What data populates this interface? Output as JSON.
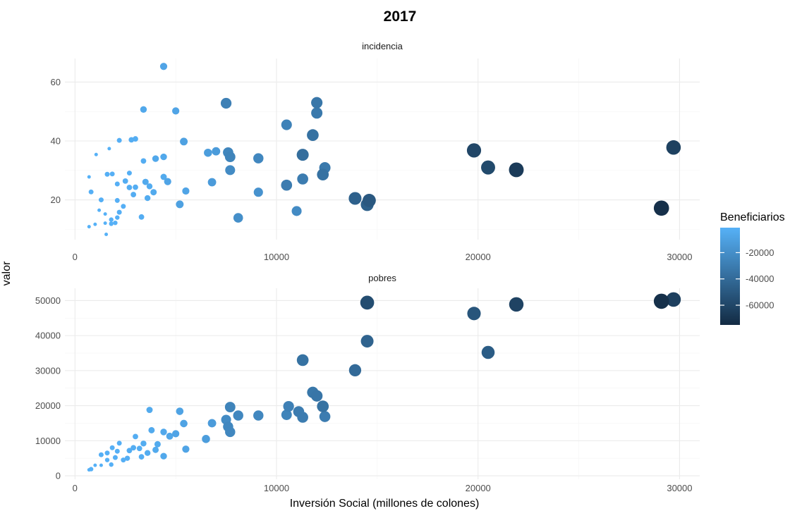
{
  "chart_data": {
    "type": "scatter",
    "title": "2017",
    "xlabel": "Inversión Social (millones de colones)",
    "ylabel": "valor",
    "xlim": [
      -500,
      31000
    ],
    "x_ticks": [
      0,
      10000,
      20000,
      30000
    ],
    "x_tick_labels": [
      "0",
      "10000",
      "20000",
      "30000"
    ],
    "grid": true,
    "color_scale": {
      "title": "Beneficiarios",
      "low_value": -75000,
      "high_value": -1000,
      "low_color": "#132B43",
      "high_color": "#56B1F7",
      "breaks": [
        -20000,
        -40000,
        -60000
      ],
      "break_labels": [
        "-20000",
        "-40000",
        "-60000"
      ]
    },
    "legend_position": "right",
    "panels": [
      {
        "strip": "incidencia",
        "ylim": [
          6.5,
          68
        ],
        "y_ticks": [
          20,
          40,
          60
        ],
        "y_tick_labels": [
          "20",
          "40",
          "60"
        ],
        "points": [
          {
            "x": 4400,
            "y": 65.3,
            "c": -8000
          },
          {
            "x": 3400,
            "y": 50.7,
            "c": -6000
          },
          {
            "x": 5000,
            "y": 50.2,
            "c": -8000
          },
          {
            "x": 7500,
            "y": 52.8,
            "c": -28000
          },
          {
            "x": 12000,
            "y": 53.0,
            "c": -33000
          },
          {
            "x": 12000,
            "y": 49.5,
            "c": -32000
          },
          {
            "x": 10500,
            "y": 45.5,
            "c": -27000
          },
          {
            "x": 11800,
            "y": 42.0,
            "c": -36000
          },
          {
            "x": 3000,
            "y": 40.7,
            "c": -3000
          },
          {
            "x": 2800,
            "y": 40.4,
            "c": -3000
          },
          {
            "x": 2200,
            "y": 40.2,
            "c": -2000
          },
          {
            "x": 5400,
            "y": 39.8,
            "c": -10000
          },
          {
            "x": 1700,
            "y": 37.4,
            "c": -1000
          },
          {
            "x": 1050,
            "y": 35.4,
            "c": -1000
          },
          {
            "x": 6600,
            "y": 36.0,
            "c": -12000
          },
          {
            "x": 7000,
            "y": 36.5,
            "c": -13000
          },
          {
            "x": 7600,
            "y": 36.1,
            "c": -25000
          },
          {
            "x": 7700,
            "y": 34.6,
            "c": -26000
          },
          {
            "x": 4400,
            "y": 34.6,
            "c": -6000
          },
          {
            "x": 4000,
            "y": 34.0,
            "c": -6000
          },
          {
            "x": 9100,
            "y": 34.1,
            "c": -24000
          },
          {
            "x": 11300,
            "y": 35.3,
            "c": -38000
          },
          {
            "x": 19800,
            "y": 36.8,
            "c": -60000
          },
          {
            "x": 29700,
            "y": 37.8,
            "c": -63000
          },
          {
            "x": 3400,
            "y": 33.2,
            "c": -3000
          },
          {
            "x": 12400,
            "y": 30.9,
            "c": -32000
          },
          {
            "x": 20500,
            "y": 31.0,
            "c": -58000
          },
          {
            "x": 21900,
            "y": 30.2,
            "c": -66000
          },
          {
            "x": 7700,
            "y": 30.1,
            "c": -22000
          },
          {
            "x": 2700,
            "y": 29.1,
            "c": -2000
          },
          {
            "x": 1850,
            "y": 28.8,
            "c": -2000
          },
          {
            "x": 1600,
            "y": 28.7,
            "c": -2000
          },
          {
            "x": 12300,
            "y": 28.6,
            "c": -36000
          },
          {
            "x": 4400,
            "y": 27.8,
            "c": -5000
          },
          {
            "x": 700,
            "y": 27.8,
            "c": -1000
          },
          {
            "x": 11300,
            "y": 27.1,
            "c": -30000
          },
          {
            "x": 6800,
            "y": 26.0,
            "c": -13000
          },
          {
            "x": 4600,
            "y": 26.2,
            "c": -8000
          },
          {
            "x": 3500,
            "y": 26.1,
            "c": -5000
          },
          {
            "x": 2500,
            "y": 26.4,
            "c": -3000
          },
          {
            "x": 2100,
            "y": 25.4,
            "c": -2000
          },
          {
            "x": 3700,
            "y": 24.6,
            "c": -4000
          },
          {
            "x": 3000,
            "y": 24.3,
            "c": -3000
          },
          {
            "x": 2700,
            "y": 24.2,
            "c": -3000
          },
          {
            "x": 10500,
            "y": 25.0,
            "c": -30000
          },
          {
            "x": 5500,
            "y": 23.0,
            "c": -8000
          },
          {
            "x": 3900,
            "y": 22.6,
            "c": -5000
          },
          {
            "x": 9100,
            "y": 22.6,
            "c": -18000
          },
          {
            "x": 800,
            "y": 22.7,
            "c": -2000
          },
          {
            "x": 2900,
            "y": 21.8,
            "c": -3000
          },
          {
            "x": 3600,
            "y": 20.6,
            "c": -4000
          },
          {
            "x": 2100,
            "y": 19.8,
            "c": -2000
          },
          {
            "x": 1300,
            "y": 20.0,
            "c": -2000
          },
          {
            "x": 13900,
            "y": 20.5,
            "c": -45000
          },
          {
            "x": 14600,
            "y": 19.8,
            "c": -50000
          },
          {
            "x": 14500,
            "y": 18.4,
            "c": -46000
          },
          {
            "x": 29100,
            "y": 17.2,
            "c": -72000
          },
          {
            "x": 5200,
            "y": 18.5,
            "c": -10000
          },
          {
            "x": 2400,
            "y": 17.8,
            "c": -2000
          },
          {
            "x": 1200,
            "y": 16.5,
            "c": -1000
          },
          {
            "x": 11000,
            "y": 16.2,
            "c": -22000
          },
          {
            "x": 1500,
            "y": 15.2,
            "c": -1000
          },
          {
            "x": 2200,
            "y": 15.8,
            "c": -2000
          },
          {
            "x": 3300,
            "y": 14.2,
            "c": -3000
          },
          {
            "x": 8100,
            "y": 13.9,
            "c": -20000
          },
          {
            "x": 2100,
            "y": 14.0,
            "c": -1500
          },
          {
            "x": 1800,
            "y": 13.3,
            "c": -1500
          },
          {
            "x": 1500,
            "y": 12.1,
            "c": -1000
          },
          {
            "x": 1000,
            "y": 11.7,
            "c": -1000
          },
          {
            "x": 2000,
            "y": 12.2,
            "c": -1500
          },
          {
            "x": 1800,
            "y": 11.9,
            "c": -1500
          },
          {
            "x": 700,
            "y": 10.9,
            "c": -1000
          },
          {
            "x": 1550,
            "y": 8.3,
            "c": -1000
          }
        ]
      },
      {
        "strip": "pobres",
        "ylim": [
          -1000,
          53500
        ],
        "y_ticks": [
          0,
          10000,
          20000,
          30000,
          40000,
          50000
        ],
        "y_tick_labels": [
          "0",
          "10000",
          "20000",
          "30000",
          "40000",
          "50000"
        ],
        "points": [
          {
            "x": 700,
            "y": 1700,
            "c": -1000
          },
          {
            "x": 800,
            "y": 1900,
            "c": -1500
          },
          {
            "x": 1000,
            "y": 3000,
            "c": -1000
          },
          {
            "x": 1300,
            "y": 3000,
            "c": -1000
          },
          {
            "x": 1300,
            "y": 6000,
            "c": -2000
          },
          {
            "x": 1600,
            "y": 4500,
            "c": -1500
          },
          {
            "x": 1600,
            "y": 6500,
            "c": -2000
          },
          {
            "x": 1800,
            "y": 3200,
            "c": -1500
          },
          {
            "x": 1850,
            "y": 8000,
            "c": -2000
          },
          {
            "x": 2000,
            "y": 5200,
            "c": -2000
          },
          {
            "x": 2100,
            "y": 7000,
            "c": -2000
          },
          {
            "x": 2200,
            "y": 9300,
            "c": -2000
          },
          {
            "x": 2400,
            "y": 4500,
            "c": -2000
          },
          {
            "x": 2600,
            "y": 5000,
            "c": -2500
          },
          {
            "x": 2700,
            "y": 7200,
            "c": -3000
          },
          {
            "x": 2900,
            "y": 8000,
            "c": -3000
          },
          {
            "x": 3000,
            "y": 11200,
            "c": -3000
          },
          {
            "x": 3200,
            "y": 7800,
            "c": -3000
          },
          {
            "x": 3300,
            "y": 5400,
            "c": -3000
          },
          {
            "x": 3400,
            "y": 9200,
            "c": -4000
          },
          {
            "x": 3600,
            "y": 6500,
            "c": -4000
          },
          {
            "x": 3700,
            "y": 18800,
            "c": -5000
          },
          {
            "x": 3800,
            "y": 13000,
            "c": -5000
          },
          {
            "x": 4000,
            "y": 7400,
            "c": -5000
          },
          {
            "x": 4100,
            "y": 9000,
            "c": -5000
          },
          {
            "x": 4400,
            "y": 5600,
            "c": -6000
          },
          {
            "x": 4400,
            "y": 12500,
            "c": -6000
          },
          {
            "x": 4700,
            "y": 11300,
            "c": -7000
          },
          {
            "x": 5000,
            "y": 12000,
            "c": -8000
          },
          {
            "x": 5200,
            "y": 18400,
            "c": -9000
          },
          {
            "x": 5400,
            "y": 14900,
            "c": -9000
          },
          {
            "x": 5500,
            "y": 7600,
            "c": -8000
          },
          {
            "x": 6500,
            "y": 10500,
            "c": -12000
          },
          {
            "x": 6800,
            "y": 15000,
            "c": -13000
          },
          {
            "x": 7500,
            "y": 16000,
            "c": -22000
          },
          {
            "x": 7600,
            "y": 14000,
            "c": -24000
          },
          {
            "x": 7700,
            "y": 19600,
            "c": -26000
          },
          {
            "x": 7700,
            "y": 12500,
            "c": -24000
          },
          {
            "x": 8100,
            "y": 17200,
            "c": -24000
          },
          {
            "x": 9100,
            "y": 17200,
            "c": -24000
          },
          {
            "x": 10500,
            "y": 17400,
            "c": -26000
          },
          {
            "x": 10600,
            "y": 19800,
            "c": -28000
          },
          {
            "x": 11100,
            "y": 18300,
            "c": -30000
          },
          {
            "x": 11300,
            "y": 16700,
            "c": -30000
          },
          {
            "x": 11300,
            "y": 33000,
            "c": -36000
          },
          {
            "x": 11800,
            "y": 23800,
            "c": -33000
          },
          {
            "x": 12000,
            "y": 22800,
            "c": -34000
          },
          {
            "x": 12300,
            "y": 19800,
            "c": -36000
          },
          {
            "x": 12400,
            "y": 16900,
            "c": -30000
          },
          {
            "x": 13900,
            "y": 30100,
            "c": -40000
          },
          {
            "x": 14500,
            "y": 38400,
            "c": -44000
          },
          {
            "x": 14500,
            "y": 49400,
            "c": -56000
          },
          {
            "x": 19800,
            "y": 46300,
            "c": -52000
          },
          {
            "x": 20500,
            "y": 35200,
            "c": -48000
          },
          {
            "x": 21900,
            "y": 48900,
            "c": -62000
          },
          {
            "x": 29100,
            "y": 49800,
            "c": -72000
          },
          {
            "x": 29700,
            "y": 50300,
            "c": -64000
          }
        ]
      }
    ]
  }
}
